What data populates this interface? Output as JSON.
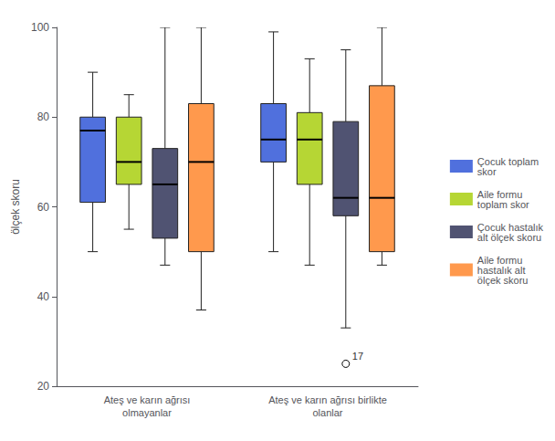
{
  "chart_data": {
    "type": "boxplot",
    "ylabel": "ölçek skoru",
    "categories": [
      "Ateş ve karın ağrısı\nolmayanlar",
      "Ateş ve karın ağrısı birlikte\nolanlar"
    ],
    "series": [
      {
        "name": "Çocuk toplam\nskor",
        "values": [
          [
            50,
            61,
            77,
            80,
            90
          ],
          [
            50,
            70,
            75,
            83,
            99
          ]
        ]
      },
      {
        "name": "Aile formu\ntoplam skor",
        "values": [
          [
            55,
            65,
            70,
            80,
            85
          ],
          [
            47,
            65,
            75,
            81,
            93
          ]
        ]
      },
      {
        "name": "Çocuk hastalık\nalt ölçek skoru",
        "values": [
          [
            47,
            53,
            65,
            73,
            100
          ],
          [
            33,
            58,
            62,
            79,
            95
          ]
        ],
        "outliers": [
          [],
          [
            25
          ]
        ],
        "outlier_labels": [
          [],
          [
            "17"
          ]
        ]
      },
      {
        "name": "Aile formu\nhastalık alt\nölçek skoru",
        "values": [
          [
            37,
            50,
            70,
            83,
            100
          ],
          [
            47,
            50,
            62,
            87,
            100
          ]
        ]
      }
    ],
    "ylim": [
      20,
      100
    ],
    "yticks": [
      20,
      40,
      60,
      80,
      100
    ],
    "grid": false,
    "legend": "right"
  }
}
